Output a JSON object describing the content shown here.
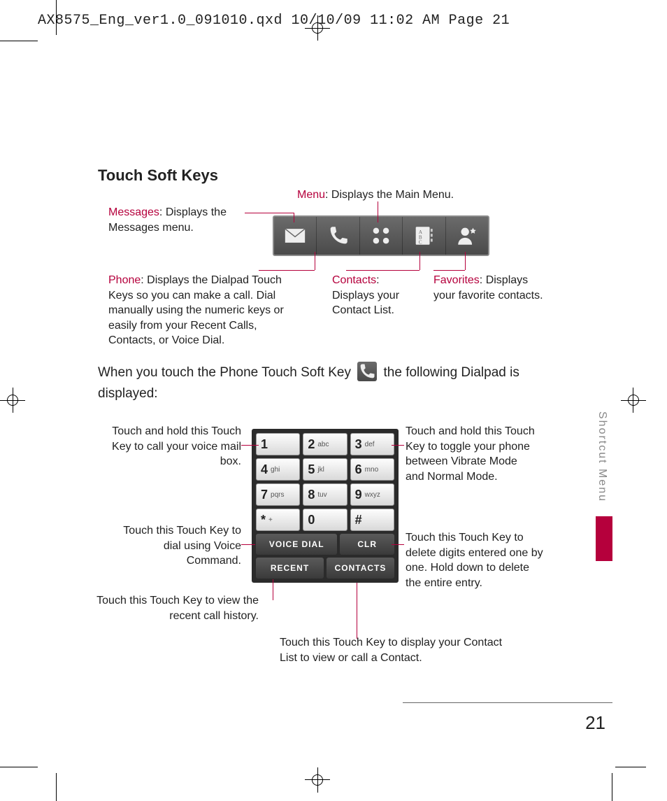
{
  "header": "AX8575_Eng_ver1.0_091010.qxd  10/10/09  11:02 AM  Page 21",
  "section_title": "Touch Soft Keys",
  "accent_color": "#b5003c",
  "softkeys": {
    "menu": {
      "kw": "Menu",
      "text": ": Displays the Main Menu."
    },
    "messages": {
      "kw": "Messages",
      "text": ": Displays the Messages menu."
    },
    "phone": {
      "kw": "Phone",
      "text": ": Displays the Dialpad Touch Keys so you can make a call. Dial manually using the numeric keys or easily from your Recent Calls, Contacts, or Voice Dial."
    },
    "contacts": {
      "kw": "Contacts",
      "text": ": Displays your Contact List."
    },
    "favorites": {
      "kw": "Favorites",
      "text": ": Displays your favorite contacts."
    }
  },
  "body1a": "When you touch the Phone Touch Soft Key",
  "body1b": "the following Dialpad is displayed:",
  "dialpad": {
    "keys": [
      {
        "big": "1",
        "sm": ""
      },
      {
        "big": "2",
        "sm": "abc"
      },
      {
        "big": "3",
        "sm": "def"
      },
      {
        "big": "4",
        "sm": "ghi"
      },
      {
        "big": "5",
        "sm": "jkl"
      },
      {
        "big": "6",
        "sm": "mno"
      },
      {
        "big": "7",
        "sm": "pqrs"
      },
      {
        "big": "8",
        "sm": "tuv"
      },
      {
        "big": "9",
        "sm": "wxyz"
      },
      {
        "big": "*",
        "sm": "+"
      },
      {
        "big": "0",
        "sm": ""
      },
      {
        "big": "#",
        "sm": ""
      }
    ],
    "voice_dial": "VOICE DIAL",
    "clr": "CLR",
    "recent": "RECENT",
    "contacts": "CONTACTS"
  },
  "dp_callouts": {
    "voicemail": "Touch and hold this Touch Key to call your voice mail box.",
    "voicecmd": "Touch this Touch Key to dial using Voice Command.",
    "recent": "Touch this Touch Key to view the recent call history.",
    "vibrate": "Touch and hold this Touch Key to toggle your phone between Vibrate Mode and Normal Mode.",
    "clr": "Touch this Touch Key to delete digits entered one by one. Hold down to delete the entire entry.",
    "contacts": "Touch this Touch Key to display your Contact List to view or call a Contact."
  },
  "side_tab": "Shortcut Menu",
  "page_number": "21"
}
